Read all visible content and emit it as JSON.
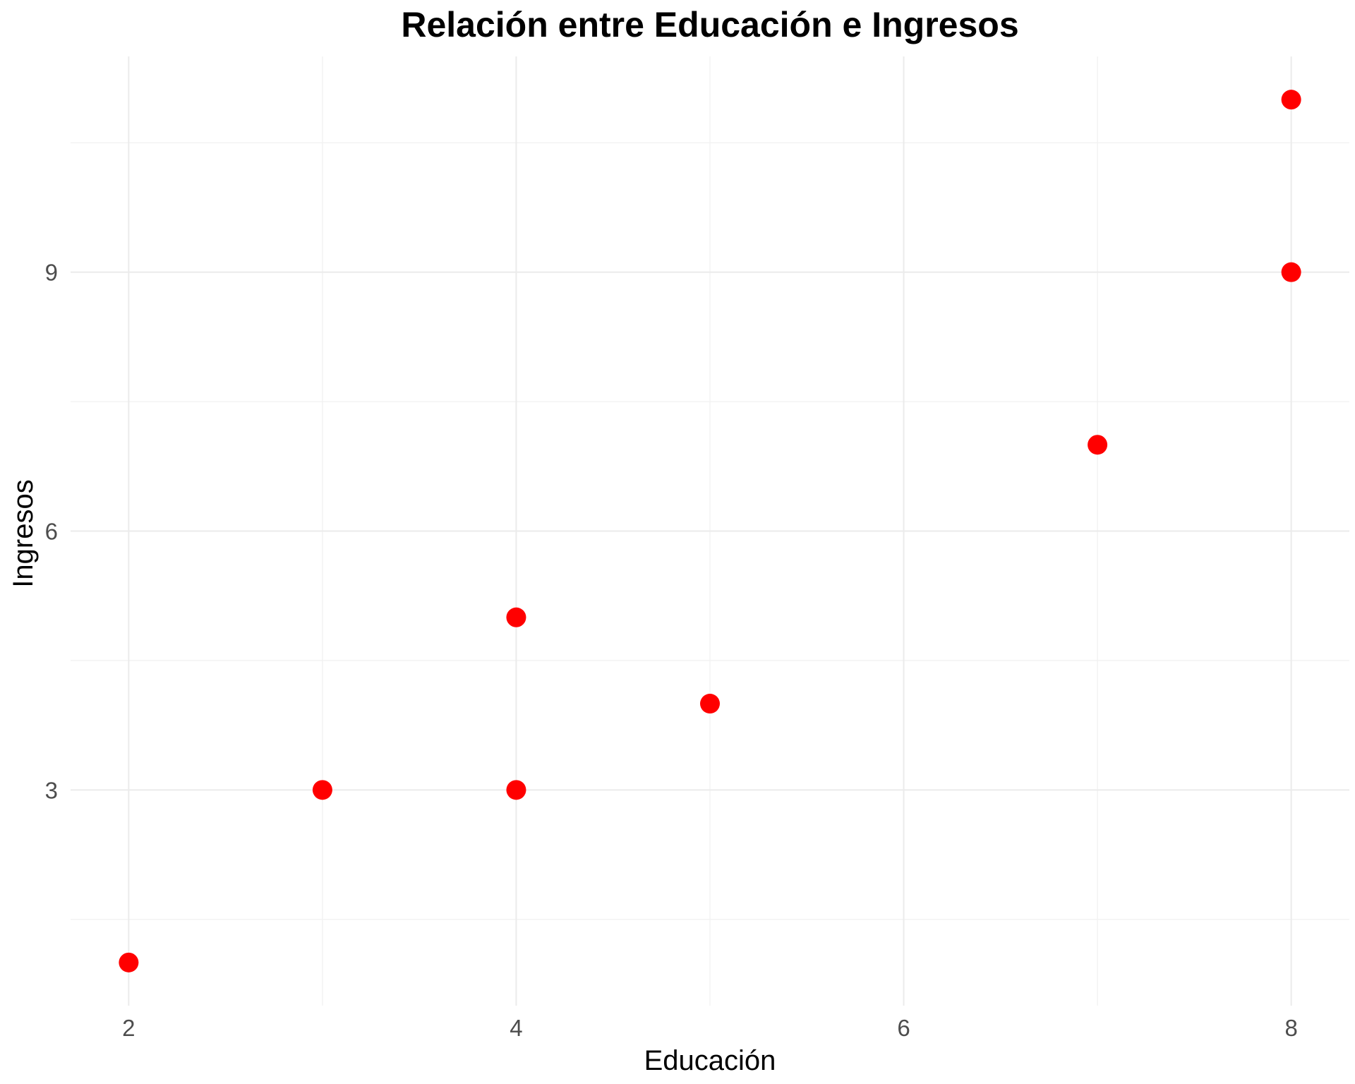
{
  "chart_data": {
    "type": "scatter",
    "title": "Relación entre Educación e Ingresos",
    "xlabel": "Educación",
    "ylabel": "Ingresos",
    "x": [
      2,
      3,
      4,
      4,
      5,
      7,
      8,
      8
    ],
    "y": [
      1,
      3,
      3,
      5,
      4,
      7,
      9,
      11
    ],
    "xlim": [
      1.7,
      8.3
    ],
    "ylim": [
      0.5,
      11.5
    ],
    "x_ticks": [
      2,
      4,
      6,
      8
    ],
    "x_tick_labels": [
      "2",
      "4",
      "6",
      "8"
    ],
    "y_ticks": [
      3,
      6,
      9
    ],
    "y_tick_labels": [
      "3",
      "6",
      "9"
    ],
    "x_minor_ticks": [
      3,
      5,
      7
    ],
    "y_minor_ticks": [
      1.5,
      4.5,
      7.5,
      10.5
    ],
    "grid": true,
    "legend": "none",
    "point_color": "#ff0000"
  }
}
